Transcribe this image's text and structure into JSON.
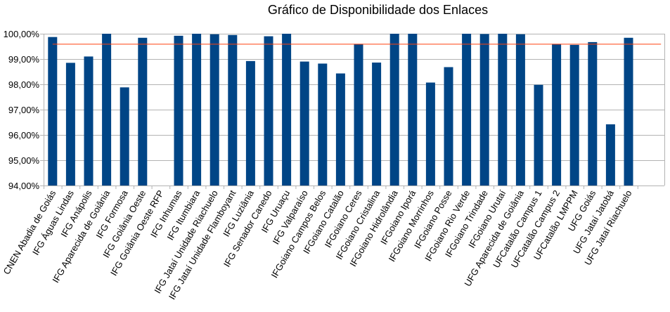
{
  "chart_data": {
    "type": "bar",
    "title": "Gráfico de Disponibilidade dos Enlaces",
    "xlabel": "",
    "ylabel": "",
    "ylim": [
      94,
      100
    ],
    "yticks": [
      94,
      95,
      96,
      97,
      98,
      99,
      100
    ],
    "ytick_labels": [
      "94,00%",
      "95,00%",
      "96,00%",
      "97,00%",
      "98,00%",
      "99,00%",
      "100,00%"
    ],
    "grid": true,
    "legend": "none",
    "bar_color": "#004586",
    "reference_line": {
      "value": 99.6,
      "color": "#ff420e"
    },
    "categories": [
      "CNEN Abadia de Goiás",
      "IFG Águas Lindas",
      "IFG Anápolis",
      "IFG Aparecida de Goiânia",
      "IFG Formosa",
      "IFG Goiânia Oeste",
      "IFG Goiânia Oeste RFP",
      "IFG Inhumas",
      "IFG Itumbiara",
      "IFG Jataí Unidade Riachuelo",
      "IFG Jataí Unidade Flamboyant",
      "IFG Luziânia",
      "IFG Senador Canedo",
      "IFG Uruaçu",
      "IFG Valparaíso",
      "IFGoiano Campos Belos",
      "IFGoiano Catalão",
      "IFGoiano Ceres",
      "IFGoiano Cristalina",
      "IFGoiano Hidrolândia",
      "IFGoiano Iporá",
      "IFGoiano Morrinhos",
      "IFGoiano Posse",
      "IFGoiano Rio Verde",
      "IFGoiano Trindade",
      "IFGoiano Urutaí",
      "UFG Aparecida de Goiânia",
      "UFCatalão Campus 1",
      "UFCatalão Campus 2",
      "UFCatalão LMPPM",
      "UFG Goiás",
      "UFG Jataí Jatobá",
      "UFG Jataí Riachuelo"
    ],
    "values": [
      99.87,
      98.85,
      99.1,
      100.0,
      97.88,
      99.84,
      null,
      99.92,
      100.0,
      99.98,
      99.95,
      98.92,
      99.9,
      100.0,
      98.9,
      98.82,
      98.43,
      99.6,
      98.86,
      100.0,
      100.0,
      98.07,
      98.68,
      100.0,
      99.99,
      100.0,
      99.98,
      97.98,
      99.6,
      99.56,
      99.67,
      96.42,
      99.84
    ]
  }
}
